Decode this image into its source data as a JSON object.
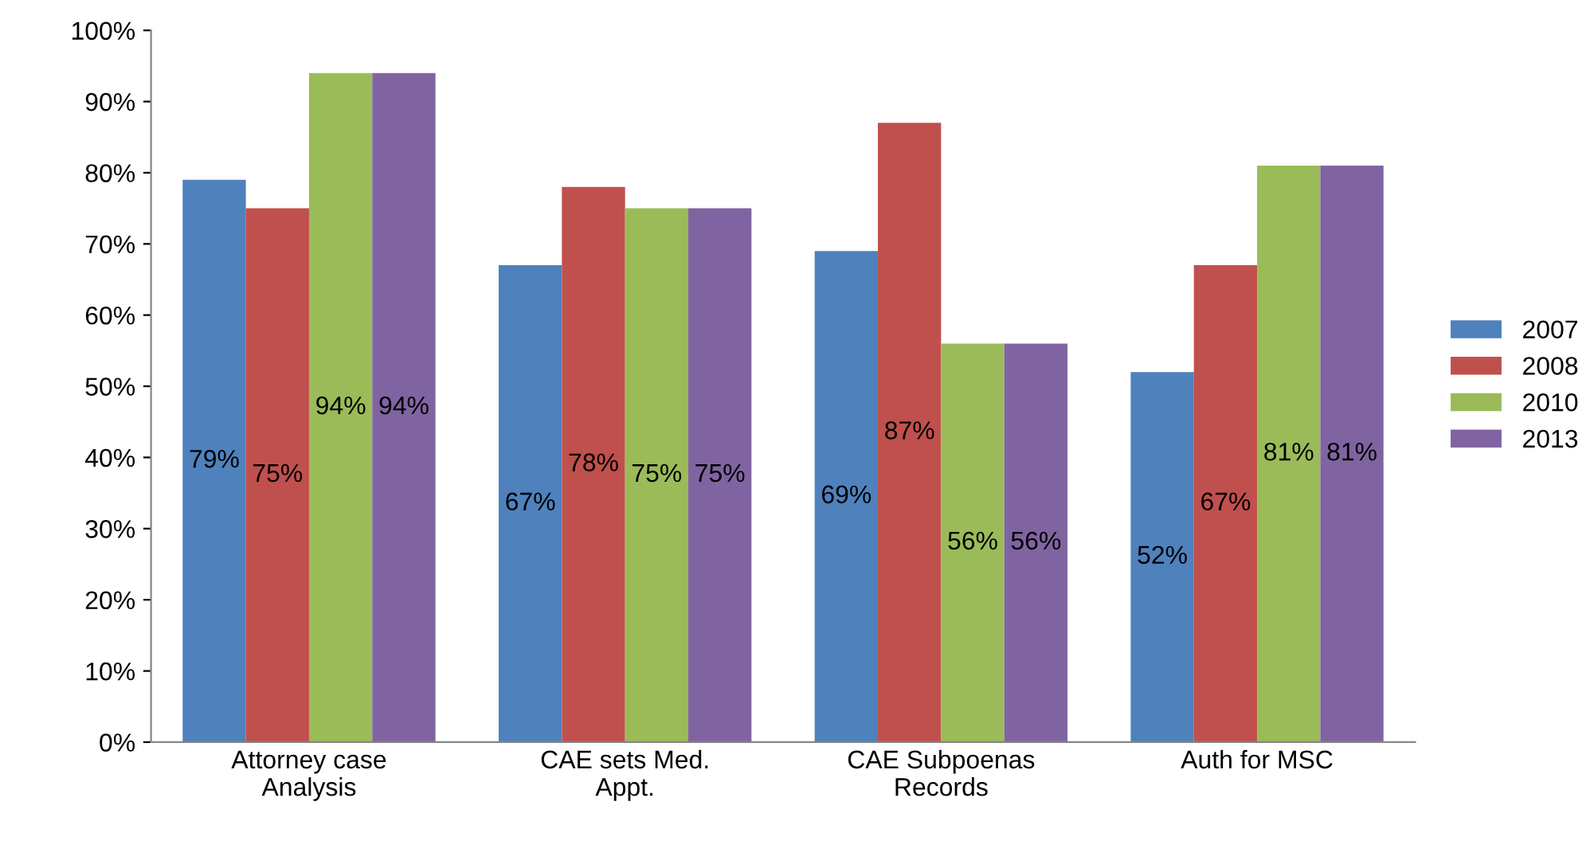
{
  "chart_data": {
    "type": "bar",
    "categories": [
      "Attorney case\nAnalysis",
      "CAE sets Med.\nAppt.",
      "CAE Subpoenas\nRecords",
      "Auth for MSC"
    ],
    "series": [
      {
        "name": "2007",
        "color": "#4f81bd",
        "values": [
          79,
          67,
          69,
          52
        ],
        "value_labels": [
          "79%",
          "67%",
          "69%",
          "52%"
        ]
      },
      {
        "name": "2008",
        "color": "#c0504d",
        "values": [
          75,
          78,
          87,
          67
        ],
        "value_labels": [
          "75%",
          "78%",
          "87%",
          "67%"
        ]
      },
      {
        "name": "2010",
        "color": "#9bbb59",
        "values": [
          94,
          75,
          56,
          81
        ],
        "value_labels": [
          "94%",
          "75%",
          "56%",
          "81%"
        ]
      },
      {
        "name": "2013",
        "color": "#8064a2",
        "values": [
          94,
          75,
          56,
          81
        ],
        "value_labels": [
          "94%",
          "75%",
          "56%",
          "81%"
        ]
      }
    ],
    "ylim": [
      0,
      100
    ],
    "yticks": [
      {
        "value": 0,
        "label": "0%"
      },
      {
        "value": 10,
        "label": "10%"
      },
      {
        "value": 20,
        "label": "20%"
      },
      {
        "value": 30,
        "label": "30%"
      },
      {
        "value": 40,
        "label": "40%"
      },
      {
        "value": 50,
        "label": "50%"
      },
      {
        "value": 60,
        "label": "60%"
      },
      {
        "value": 70,
        "label": "70%"
      },
      {
        "value": 80,
        "label": "80%"
      },
      {
        "value": 90,
        "label": "90%"
      },
      {
        "value": 100,
        "label": "100%"
      }
    ],
    "grid": false,
    "legend": "right"
  }
}
